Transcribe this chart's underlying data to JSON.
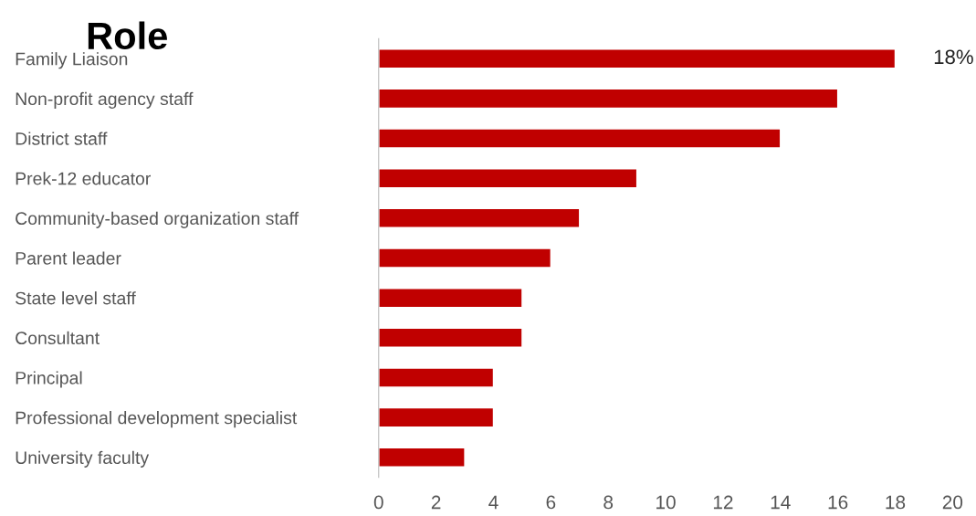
{
  "chart_data": {
    "type": "bar",
    "orientation": "horizontal",
    "title": "Role",
    "categories": [
      "Family Liaison",
      "Non-profit agency staff",
      "District staff",
      "Prek-12 educator",
      "Community-based organization staff",
      "Parent leader",
      "State level staff",
      "Consultant",
      "Principal",
      "Professional development specialist",
      "University faculty"
    ],
    "values": [
      18,
      16,
      14,
      9,
      7,
      6,
      5,
      5,
      4,
      4,
      3
    ],
    "value_labels": [
      "18%",
      null,
      null,
      null,
      null,
      null,
      null,
      null,
      null,
      null,
      null
    ],
    "color": "#c00000",
    "xlim": [
      0,
      20
    ],
    "xticks": [
      0,
      2,
      4,
      6,
      8,
      10,
      12,
      14,
      16,
      18,
      20
    ],
    "grid": false,
    "legend": false
  }
}
